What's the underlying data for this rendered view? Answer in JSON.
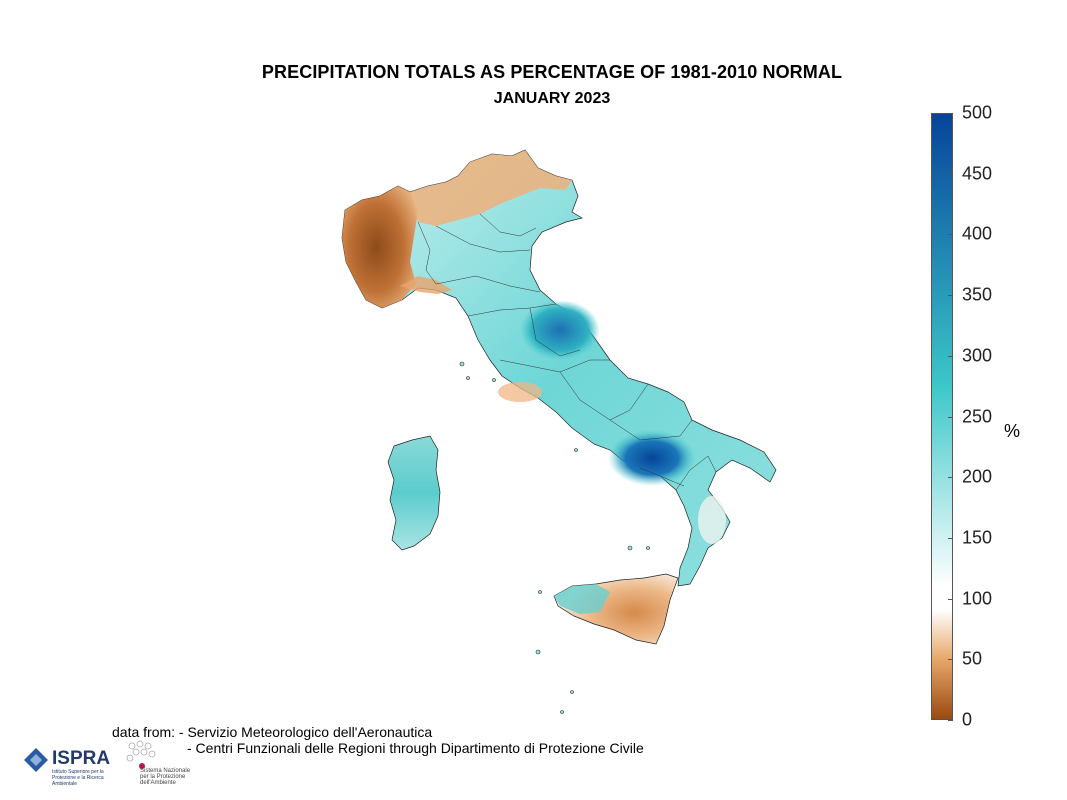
{
  "title": "PRECIPITATION TOTALS AS PERCENTAGE OF 1981-2010 NORMAL",
  "subtitle": "JANUARY 2023",
  "colorbar": {
    "ticks": [
      "500",
      "450",
      "400",
      "350",
      "300",
      "250",
      "200",
      "150",
      "100",
      "50",
      "0"
    ],
    "unit": "%",
    "range": [
      0,
      500
    ],
    "colors": {
      "low": "#9a4a10",
      "mid_low": "#e8a86a",
      "neutral": "#ffffff",
      "mid_high": "#3cc7c9",
      "high": "#06449a"
    }
  },
  "source": {
    "line1": "data from: - Servizio Meteorologico dell'Aeronautica",
    "line2": "- Centri Funzionali delle Regioni through Dipartimento di Protezione Civile"
  },
  "logos": {
    "ispra_name": "ISPRA",
    "ispra_sub": "Istituto Superiore per la Protezione e la Ricerca Ambientale",
    "partner_sub": "Sistema Nazionale per la Protezione dell'Ambiente"
  }
}
